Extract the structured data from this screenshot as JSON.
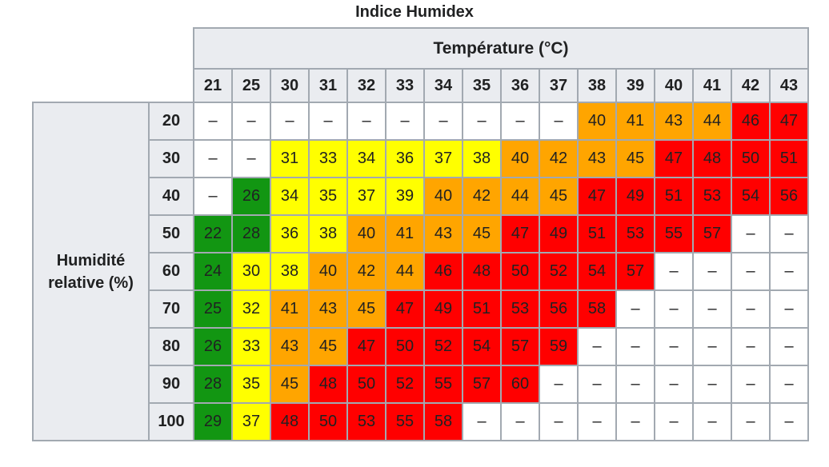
{
  "title": "Indice Humidex",
  "colors": {
    "green": "#129612",
    "yellow": "#FFFF00",
    "orange": "#FFA500",
    "red": "#FF0000",
    "white": "#FFFFFF",
    "header_bg": "#EAECF0",
    "border": "#A2A9B1",
    "text": "#202122"
  },
  "chart_data": {
    "type": "heatmap",
    "title": "Indice Humidex",
    "xlabel": "Température (°C)",
    "ylabel": "Humidité relative (%)",
    "missing_label": "–",
    "x_categories": [
      21,
      25,
      30,
      31,
      32,
      33,
      34,
      35,
      36,
      37,
      38,
      39,
      40,
      41,
      42,
      43
    ],
    "y_categories": [
      20,
      30,
      40,
      50,
      60,
      70,
      80,
      90,
      100
    ],
    "values": [
      [
        null,
        null,
        null,
        null,
        null,
        null,
        null,
        null,
        null,
        null,
        40,
        41,
        43,
        44,
        46,
        47
      ],
      [
        null,
        null,
        31,
        33,
        34,
        36,
        37,
        38,
        40,
        42,
        43,
        45,
        47,
        48,
        50,
        51
      ],
      [
        null,
        26,
        34,
        35,
        37,
        39,
        40,
        42,
        44,
        45,
        47,
        49,
        51,
        53,
        54,
        56
      ],
      [
        22,
        28,
        36,
        38,
        40,
        41,
        43,
        45,
        47,
        49,
        51,
        53,
        55,
        57,
        null,
        null
      ],
      [
        24,
        30,
        38,
        40,
        42,
        44,
        46,
        48,
        50,
        52,
        54,
        57,
        null,
        null,
        null,
        null
      ],
      [
        25,
        32,
        41,
        43,
        45,
        47,
        49,
        51,
        53,
        56,
        58,
        null,
        null,
        null,
        null,
        null
      ],
      [
        26,
        33,
        43,
        45,
        47,
        50,
        52,
        54,
        57,
        59,
        null,
        null,
        null,
        null,
        null,
        null
      ],
      [
        28,
        35,
        45,
        48,
        50,
        52,
        55,
        57,
        60,
        null,
        null,
        null,
        null,
        null,
        null,
        null
      ],
      [
        29,
        37,
        48,
        50,
        53,
        55,
        58,
        null,
        null,
        null,
        null,
        null,
        null,
        null,
        null,
        null
      ]
    ],
    "cell_colors": [
      [
        "white",
        "white",
        "white",
        "white",
        "white",
        "white",
        "white",
        "white",
        "white",
        "white",
        "orange",
        "orange",
        "orange",
        "orange",
        "red",
        "red"
      ],
      [
        "white",
        "white",
        "yellow",
        "yellow",
        "yellow",
        "yellow",
        "yellow",
        "yellow",
        "orange",
        "orange",
        "orange",
        "orange",
        "red",
        "red",
        "red",
        "red"
      ],
      [
        "white",
        "green",
        "yellow",
        "yellow",
        "yellow",
        "yellow",
        "orange",
        "orange",
        "orange",
        "orange",
        "red",
        "red",
        "red",
        "red",
        "red",
        "red"
      ],
      [
        "green",
        "green",
        "yellow",
        "yellow",
        "orange",
        "orange",
        "orange",
        "orange",
        "red",
        "red",
        "red",
        "red",
        "red",
        "red",
        "white",
        "white"
      ],
      [
        "green",
        "yellow",
        "yellow",
        "orange",
        "orange",
        "orange",
        "red",
        "red",
        "red",
        "red",
        "red",
        "red",
        "white",
        "white",
        "white",
        "white"
      ],
      [
        "green",
        "yellow",
        "orange",
        "orange",
        "orange",
        "red",
        "red",
        "red",
        "red",
        "red",
        "red",
        "white",
        "white",
        "white",
        "white",
        "white"
      ],
      [
        "green",
        "yellow",
        "orange",
        "orange",
        "red",
        "red",
        "red",
        "red",
        "red",
        "red",
        "white",
        "white",
        "white",
        "white",
        "white",
        "white"
      ],
      [
        "green",
        "yellow",
        "orange",
        "red",
        "red",
        "red",
        "red",
        "red",
        "red",
        "white",
        "white",
        "white",
        "white",
        "white",
        "white",
        "white"
      ],
      [
        "green",
        "yellow",
        "red",
        "red",
        "red",
        "red",
        "red",
        "white",
        "white",
        "white",
        "white",
        "white",
        "white",
        "white",
        "white",
        "white"
      ]
    ]
  }
}
